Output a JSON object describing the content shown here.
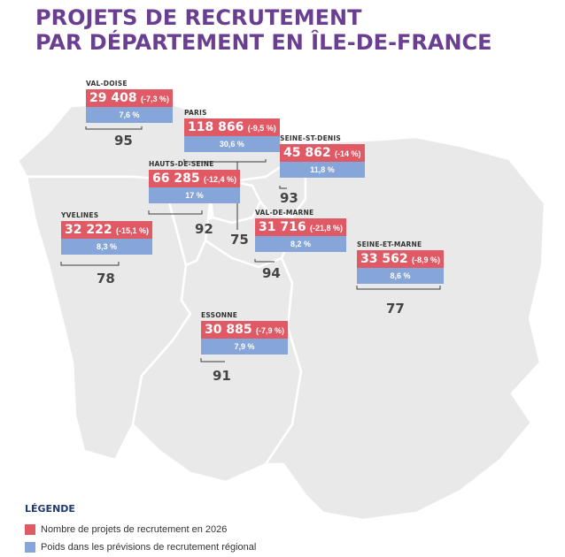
{
  "title": {
    "line1": "PROJETS DE RECRUTEMENT",
    "line2": "PAR DÉPARTEMENT EN ÎLE-DE-FRANCE"
  },
  "colors": {
    "title": "#6a3f91",
    "red": "#e05a66",
    "blue": "#86a6da",
    "map_fill": "#e9e9ea",
    "map_border": "#ffffff"
  },
  "departments": [
    {
      "key": "valdoise",
      "name": "VAL-DOISE",
      "projects": "29 408",
      "variation": "(-7,3 %)",
      "share": "7,6 %",
      "code": "95"
    },
    {
      "key": "paris",
      "name": "PARIS",
      "projects": "118 866",
      "variation": "(-9,5 %)",
      "share": "30,6 %",
      "code": "75"
    },
    {
      "key": "seinestdenis",
      "name": "SEINE-ST-DENIS",
      "projects": "45 862",
      "variation": "(-14 %)",
      "share": "11,8 %",
      "code": "93"
    },
    {
      "key": "hautsdeseine",
      "name": "HAUTS-DE-SEINE",
      "projects": "66 285",
      "variation": "(-12,4 %)",
      "share": "17 %",
      "code": "92"
    },
    {
      "key": "yvelines",
      "name": "YVELINES",
      "projects": "32 222",
      "variation": "(-15,1 %)",
      "share": "8,3 %",
      "code": "78"
    },
    {
      "key": "valdemarne",
      "name": "VAL-DE-MARNE",
      "projects": "31 716",
      "variation": "(-21,8 %)",
      "share": "8,2 %",
      "code": "94"
    },
    {
      "key": "seineetmarne",
      "name": "SEINE-ET-MARNE",
      "projects": "33 562",
      "variation": "(-8,9 %)",
      "share": "8,6 %",
      "code": "77"
    },
    {
      "key": "essonne",
      "name": "ESSONNE",
      "projects": "30 885",
      "variation": "(-7,9 %)",
      "share": "7,9 %",
      "code": "91"
    }
  ],
  "legend": {
    "title": "LÉGENDE",
    "items": [
      {
        "label": "Nombre de projets de recrutement en 2026",
        "color": "#e05a66"
      },
      {
        "label": "Poids dans les prévisions de recrutement régional",
        "color": "#86a6da"
      }
    ]
  }
}
